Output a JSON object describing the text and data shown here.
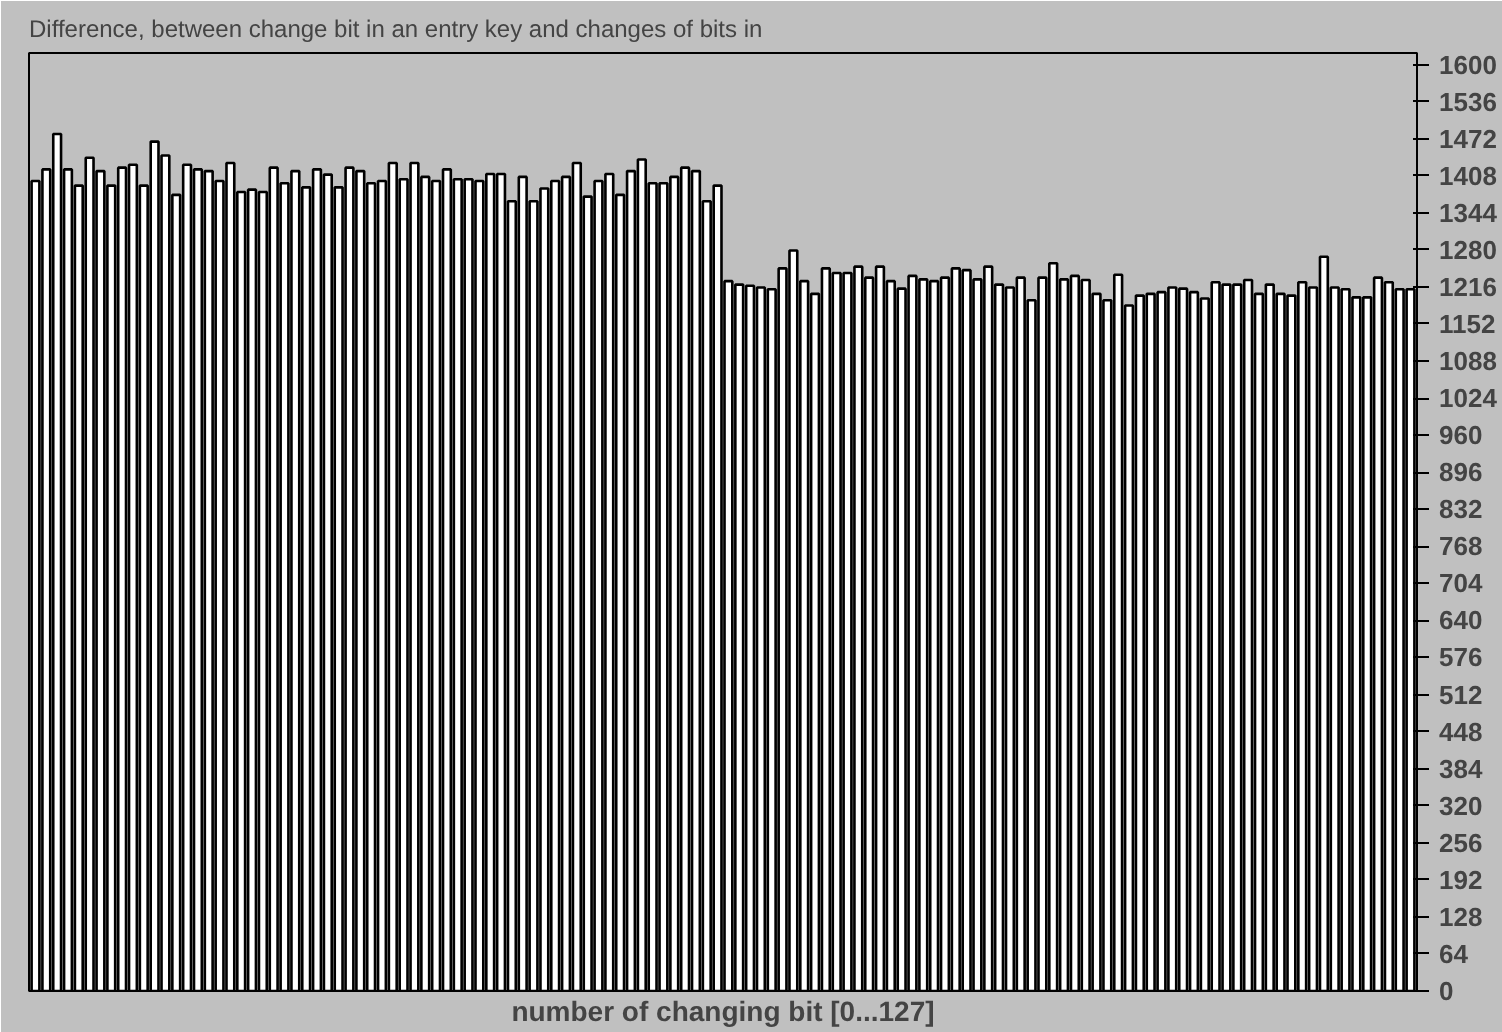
{
  "chart_data": {
    "type": "bar",
    "title": "Difference, between change bit in an entry key and changes of bits in",
    "xlabel": "number of changing bit [0...127]",
    "categories": [
      null,
      null,
      null,
      null,
      null,
      null,
      null,
      null,
      null,
      null,
      null,
      null,
      null,
      null,
      null,
      null,
      null,
      null,
      null,
      null,
      null,
      null,
      null,
      null,
      null,
      null,
      null,
      null,
      null,
      null,
      null,
      null,
      null,
      null,
      null,
      null,
      null,
      null,
      null,
      null,
      null,
      null,
      null,
      null,
      null,
      null,
      null,
      null,
      null,
      null,
      null,
      null,
      null,
      null,
      null,
      null,
      null,
      null,
      null,
      null,
      null,
      null,
      null,
      null,
      null,
      null,
      null,
      null,
      null,
      null,
      null,
      null,
      null,
      null,
      null,
      null,
      null,
      null,
      null,
      null,
      null,
      null,
      null,
      null,
      null,
      null,
      null,
      null,
      null,
      null,
      null,
      null,
      null,
      null,
      null,
      null,
      null,
      null,
      null,
      null,
      null,
      null,
      null,
      null,
      null,
      null,
      null,
      null,
      null,
      null,
      null,
      null,
      null,
      null,
      null,
      null,
      null,
      null,
      null,
      null,
      null,
      null,
      null,
      null,
      null,
      null,
      null,
      null
    ],
    "values": [
      1399,
      1419,
      1480,
      1419,
      1391,
      1439,
      1416,
      1391,
      1422,
      1427,
      1391,
      1467,
      1443,
      1375,
      1427,
      1419,
      1416,
      1399,
      1430,
      1380,
      1384,
      1380,
      1422,
      1395,
      1416,
      1388,
      1419,
      1410,
      1388,
      1422,
      1416,
      1395,
      1399,
      1430,
      1402,
      1430,
      1406,
      1399,
      1419,
      1402,
      1402,
      1399,
      1411,
      1411,
      1364,
      1406,
      1364,
      1386,
      1399,
      1406,
      1430,
      1372,
      1399,
      1411,
      1375,
      1416,
      1436,
      1395,
      1395,
      1406,
      1422,
      1416,
      1364,
      1391,
      1226,
      1220,
      1218,
      1215,
      1212,
      1248,
      1279,
      1226,
      1204,
      1248,
      1240,
      1240,
      1251,
      1232,
      1251,
      1226,
      1213,
      1235,
      1229,
      1226,
      1232,
      1248,
      1245,
      1229,
      1251,
      1220,
      1215,
      1232,
      1193,
      1232,
      1257,
      1229,
      1235,
      1228,
      1204,
      1193,
      1237,
      1184,
      1201,
      1204,
      1207,
      1215,
      1213,
      1207,
      1196,
      1224,
      1220,
      1220,
      1228,
      1204,
      1220,
      1204,
      1201,
      1224,
      1215,
      1268,
      1215,
      1212,
      1198,
      1198,
      1232,
      1224,
      1212,
      1212
    ],
    "color": "#ffffff",
    "ylim": [
      0,
      1620
    ],
    "yticks": [
      0,
      64,
      128,
      192,
      256,
      320,
      384,
      448,
      512,
      576,
      640,
      704,
      768,
      832,
      896,
      960,
      1024,
      1088,
      1152,
      1216,
      1280,
      1344,
      1408,
      1472,
      1536,
      1600
    ],
    "grid": false
  }
}
